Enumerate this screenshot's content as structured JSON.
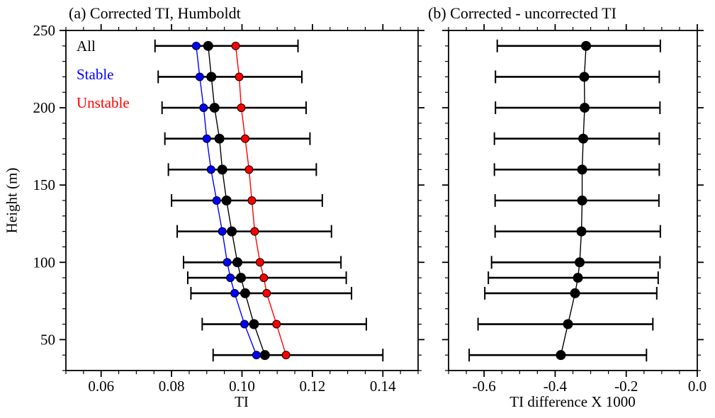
{
  "figure": {
    "background": "#ffffff",
    "text_color": "#000000"
  },
  "chart_data": [
    {
      "panel": "a",
      "type": "scatter",
      "style": "vertical-profile-with-errorbars",
      "title": "(a) Corrected TI, Humboldt",
      "xlabel": "TI",
      "ylabel": "Height (m)",
      "xlim": [
        0.05,
        0.15
      ],
      "ylim": [
        30,
        250
      ],
      "x_major_ticks": [
        0.06,
        0.08,
        0.1,
        0.12,
        0.14
      ],
      "x_tick_labels": [
        "0.06",
        "0.08",
        "0.10",
        "0.12",
        "0.14"
      ],
      "x_minor_step": 0.005,
      "y_major_ticks": [
        50,
        100,
        150,
        200,
        250
      ],
      "y_tick_labels": [
        "50",
        "100",
        "150",
        "200",
        "250"
      ],
      "y_minor_step": 10,
      "grid": false,
      "legend_position": "top-left-inside",
      "heights": [
        240,
        220,
        200,
        180,
        160,
        140,
        120,
        100,
        90,
        80,
        60,
        40
      ],
      "series": [
        {
          "name": "All",
          "color": "#000000",
          "values": [
            0.0904,
            0.0913,
            0.0922,
            0.0936,
            0.0944,
            0.0956,
            0.0971,
            0.0987,
            0.0997,
            0.1009,
            0.1034,
            0.1065
          ],
          "err_lo": [
            0.0753,
            0.0762,
            0.0773,
            0.0781,
            0.0791,
            0.08,
            0.0816,
            0.0834,
            0.0846,
            0.0855,
            0.0887,
            0.0918
          ],
          "err_hi": [
            0.1159,
            0.117,
            0.1182,
            0.1193,
            0.1211,
            0.1228,
            0.1254,
            0.1281,
            0.1296,
            0.1311,
            0.1353,
            0.14
          ]
        },
        {
          "name": "Stable",
          "color": "#0000ff",
          "values": [
            0.087,
            0.088,
            0.0891,
            0.09,
            0.0912,
            0.0928,
            0.0944,
            0.0958,
            0.0967,
            0.0979,
            0.1007,
            0.1041
          ]
        },
        {
          "name": "Unstable",
          "color": "#ff0000",
          "values": [
            0.0982,
            0.0992,
            0.0998,
            0.1009,
            0.102,
            0.1028,
            0.1036,
            0.1051,
            0.1062,
            0.107,
            0.1098,
            0.1125
          ]
        }
      ]
    },
    {
      "panel": "b",
      "type": "scatter",
      "style": "vertical-profile-with-errorbars",
      "title": "(b) Corrected - uncorrected TI",
      "xlabel": "TI difference X 1000",
      "ylabel": "Height (m)",
      "xlim": [
        -0.7,
        0.0
      ],
      "ylim": [
        30,
        250
      ],
      "x_major_ticks": [
        -0.6,
        -0.4,
        -0.2,
        0.0
      ],
      "x_tick_labels": [
        "-0.6",
        "-0.4",
        "-0.2",
        "0.0"
      ],
      "x_minor_step": 0.05,
      "y_major_ticks": [
        50,
        100,
        150,
        200,
        250
      ],
      "y_tick_labels": [],
      "y_minor_step": 10,
      "grid": false,
      "heights": [
        240,
        220,
        200,
        180,
        160,
        140,
        120,
        100,
        90,
        80,
        60,
        40
      ],
      "series": [
        {
          "name": "Corrected - uncorrected",
          "color": "#000000",
          "values": [
            -0.313,
            -0.318,
            -0.317,
            -0.321,
            -0.324,
            -0.324,
            -0.326,
            -0.331,
            -0.336,
            -0.344,
            -0.364,
            -0.384
          ],
          "err_lo": [
            -0.563,
            -0.568,
            -0.568,
            -0.571,
            -0.571,
            -0.569,
            -0.569,
            -0.579,
            -0.588,
            -0.598,
            -0.617,
            -0.642
          ],
          "err_hi": [
            -0.104,
            -0.107,
            -0.105,
            -0.107,
            -0.107,
            -0.108,
            -0.104,
            -0.105,
            -0.11,
            -0.114,
            -0.125,
            -0.143
          ]
        }
      ]
    }
  ]
}
